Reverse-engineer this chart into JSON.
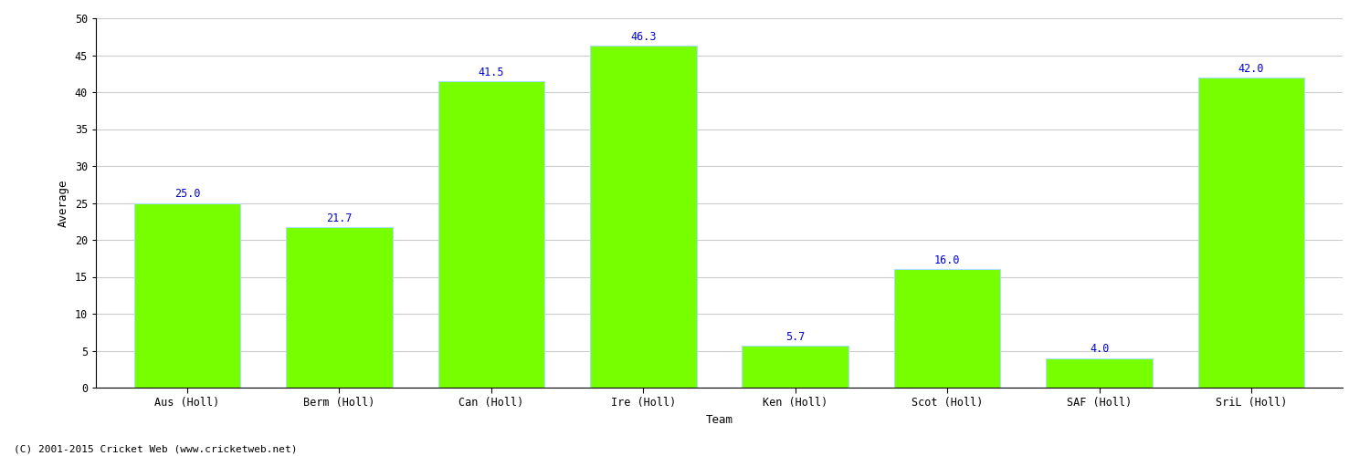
{
  "xlabel": "Team",
  "ylabel": "Average",
  "categories": [
    "Aus (Holl)",
    "Berm (Holl)",
    "Can (Holl)",
    "Ire (Holl)",
    "Ken (Holl)",
    "Scot (Holl)",
    "SAF (Holl)",
    "SriL (Holl)"
  ],
  "values": [
    25.0,
    21.7,
    41.5,
    46.3,
    5.7,
    16.0,
    4.0,
    42.0
  ],
  "bar_color": "#77ff00",
  "bar_edge_color": "#aaffaa",
  "label_color": "#0000cc",
  "ylim": [
    0,
    50
  ],
  "yticks": [
    0,
    5,
    10,
    15,
    20,
    25,
    30,
    35,
    40,
    45,
    50
  ],
  "background_color": "#ffffff",
  "grid_color": "#cccccc",
  "label_fontsize": 8.5,
  "axis_label_fontsize": 9,
  "tick_fontsize": 8.5,
  "footer_text": "(C) 2001-2015 Cricket Web (www.cricketweb.net)",
  "footer_fontsize": 8
}
